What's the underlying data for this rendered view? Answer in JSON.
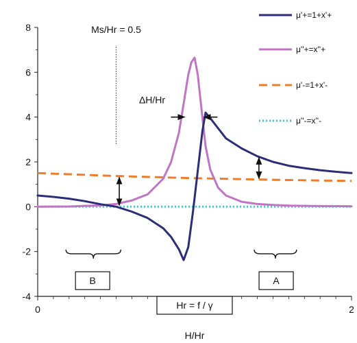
{
  "chart_data": {
    "type": "line",
    "xlabel": "H/Hr",
    "ylabel": "",
    "xlim": [
      0,
      2
    ],
    "ylim": [
      -4,
      8
    ],
    "x_ticks": [
      0,
      1,
      2
    ],
    "y_ticks": [
      -4,
      -2,
      0,
      2,
      4,
      6,
      8
    ],
    "grid": false,
    "legend_position": "top-right",
    "series": [
      {
        "name": "μ'+=1+x'+",
        "color": "#2b2d78",
        "style": "solid",
        "x": [
          0,
          0.1,
          0.2,
          0.3,
          0.4,
          0.5,
          0.6,
          0.7,
          0.8,
          0.85,
          0.9,
          0.93,
          0.96,
          0.99,
          1.02,
          1.05,
          1.07,
          1.1,
          1.15,
          1.2,
          1.3,
          1.4,
          1.5,
          1.6,
          1.7,
          1.8,
          1.9,
          2.0
        ],
        "y": [
          0.5,
          0.44,
          0.36,
          0.25,
          0.11,
          0.0,
          -0.22,
          -0.5,
          -0.96,
          -1.35,
          -1.9,
          -2.38,
          -1.8,
          -0.2,
          1.6,
          3.4,
          4.2,
          3.95,
          3.5,
          3.05,
          2.6,
          2.25,
          2.0,
          1.83,
          1.72,
          1.63,
          1.56,
          1.5
        ]
      },
      {
        "name": "μ''+=x''+",
        "color": "#c074c4",
        "style": "solid",
        "x": [
          0,
          0.2,
          0.4,
          0.5,
          0.6,
          0.7,
          0.8,
          0.85,
          0.9,
          0.93,
          0.96,
          0.98,
          1.0,
          1.02,
          1.04,
          1.07,
          1.1,
          1.15,
          1.2,
          1.3,
          1.4,
          1.5,
          1.6,
          1.8,
          2.0
        ],
        "y": [
          0.0,
          0.01,
          0.06,
          0.12,
          0.28,
          0.55,
          1.25,
          2.0,
          3.3,
          4.6,
          5.9,
          6.45,
          6.65,
          5.9,
          4.6,
          2.7,
          1.65,
          0.85,
          0.5,
          0.22,
          0.12,
          0.08,
          0.05,
          0.03,
          0.02
        ]
      },
      {
        "name": "μ'-=1+x'-",
        "color": "#f07c2a",
        "style": "dashed",
        "x": [
          0,
          0.5,
          1.0,
          1.5,
          2.0
        ],
        "y": [
          1.5,
          1.37,
          1.27,
          1.2,
          1.15
        ]
      },
      {
        "name": "μ''-=x''-",
        "color": "#3ec6d8",
        "style": "dotted",
        "x": [
          0,
          2
        ],
        "y": [
          0.0,
          0.0
        ]
      }
    ],
    "annotations": {
      "ms_label": "Ms/Hr = 0.5",
      "ms_x": 0.5,
      "ms_line_from_y": 2.8,
      "ms_line_to_y": 7.2,
      "delta_label": "ΔH/Hr",
      "delta_y": 4.0,
      "delta_left_x": 0.945,
      "delta_right_x": 1.05,
      "arrow_b": {
        "x": 0.52,
        "y_from": 0.0,
        "y_to": 1.37
      },
      "arrow_a": {
        "x": 1.41,
        "y_from": 1.2,
        "y_to": 2.25
      },
      "brace_b": {
        "x1": 0.18,
        "x2": 0.53,
        "y": -2.1
      },
      "brace_a": {
        "x1": 1.38,
        "x2": 1.65,
        "y": -2.1
      },
      "box_b": {
        "text": "B",
        "x": 0.35,
        "y": -3.3
      },
      "box_a": {
        "text": "A",
        "x": 1.52,
        "y": -3.3
      },
      "box_hr": {
        "text": "Hr = f / γ",
        "x": 1.0,
        "y": -4.4
      }
    }
  }
}
